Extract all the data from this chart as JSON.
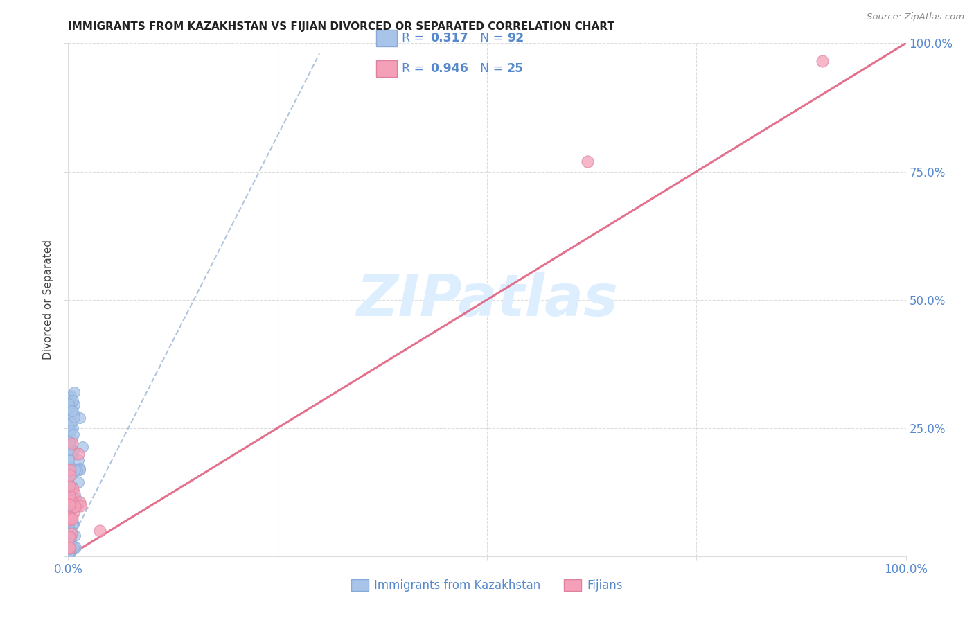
{
  "title": "IMMIGRANTS FROM KAZAKHSTAN VS FIJIAN DIVORCED OR SEPARATED CORRELATION CHART",
  "source": "Source: ZipAtlas.com",
  "ylabel": "Divorced or Separated",
  "xlim": [
    0,
    1.0
  ],
  "ylim": [
    0,
    1.0
  ],
  "blue_color": "#a8c4e8",
  "blue_edge_color": "#88aad8",
  "pink_color": "#f4a0b8",
  "pink_edge_color": "#e080a0",
  "blue_line_color": "#90acd0",
  "pink_line_color": "#e06080",
  "tick_color": "#5588cc",
  "legend_label_blue": "Immigrants from Kazakhstan",
  "legend_label_pink": "Fijians",
  "watermark_color": "#ddeeff",
  "background_color": "#ffffff",
  "grid_color": "#dddddd"
}
